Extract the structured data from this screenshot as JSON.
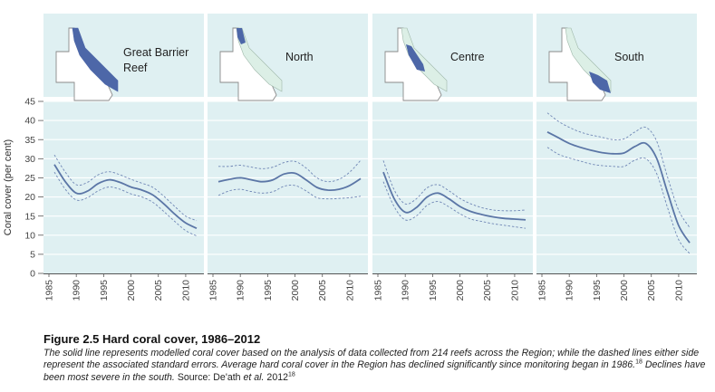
{
  "figure": {
    "title": "Figure 2.5 Hard coral cover, 1986–2012",
    "caption_part1": "The solid line represents modelled coral cover based on the analysis of data collected from 214 reefs across the Region; while the dashed lines either side represent the associated standard errors. Average hard coral cover in the Region has declined significantly since monitoring began in 1986.",
    "caption_ref1": "18",
    "caption_part2": " Declines have been most severe in the south.",
    "caption_source_label": " Source: De'ath ",
    "caption_source_etal": "et al.",
    "caption_source_year": " 2012",
    "caption_ref2": "18"
  },
  "chart_data": {
    "type": "line",
    "ylabel": "Coral cover (per cent)",
    "ylim": [
      0,
      45
    ],
    "yticks": [
      0,
      5,
      10,
      15,
      20,
      25,
      30,
      35,
      40,
      45
    ],
    "xlim": [
      1985,
      2012
    ],
    "xticks": [
      1985,
      1990,
      1995,
      2000,
      2005,
      2010
    ],
    "grid": true,
    "colors": {
      "mean": "#5b76a6",
      "bound": "#6f86b5",
      "panel_bg": "#dff0f2",
      "gridline": "#ffffff",
      "map_fill": "#ffffff",
      "map_stroke": "#8a8a8a",
      "reef_light": "#dcefe6",
      "reef_highlight": "#4d67a8"
    },
    "panels": [
      {
        "title_lines": [
          "Great Barrier",
          "Reef"
        ],
        "highlight": "all",
        "x": [
          1986,
          1988,
          1990,
          1992,
          1994,
          1996,
          1998,
          2000,
          2002,
          2004,
          2006,
          2008,
          2010,
          2012
        ],
        "mean": [
          28.5,
          24.0,
          21.0,
          21.5,
          23.5,
          24.5,
          23.8,
          22.6,
          21.8,
          20.5,
          18.2,
          15.5,
          13.2,
          11.8
        ],
        "upper": [
          31.0,
          26.5,
          23.2,
          23.8,
          25.8,
          26.6,
          25.8,
          24.6,
          23.6,
          22.5,
          20.2,
          17.5,
          15.0,
          13.8
        ],
        "lower": [
          26.5,
          22.0,
          19.2,
          19.8,
          21.6,
          22.6,
          22.0,
          20.8,
          20.0,
          18.6,
          16.2,
          13.6,
          11.2,
          9.8
        ]
      },
      {
        "title_lines": [
          "North"
        ],
        "highlight": "north",
        "x": [
          1986,
          1988,
          1990,
          1992,
          1994,
          1996,
          1998,
          2000,
          2002,
          2004,
          2006,
          2008,
          2010,
          2012
        ],
        "mean": [
          24.0,
          24.6,
          25.0,
          24.5,
          24.0,
          24.5,
          26.0,
          26.2,
          24.5,
          22.5,
          21.8,
          22.0,
          23.0,
          24.8
        ],
        "upper": [
          28.0,
          28.0,
          28.3,
          27.8,
          27.4,
          27.8,
          29.0,
          29.3,
          27.6,
          25.0,
          24.0,
          24.6,
          26.5,
          29.6
        ],
        "lower": [
          20.4,
          21.6,
          22.0,
          21.4,
          21.0,
          21.4,
          22.8,
          23.0,
          21.6,
          19.8,
          19.5,
          19.6,
          19.8,
          20.2
        ]
      },
      {
        "title_lines": [
          "Centre"
        ],
        "highlight": "centre",
        "x": [
          1986,
          1988,
          1990,
          1992,
          1994,
          1996,
          1998,
          2000,
          2002,
          2004,
          2006,
          2008,
          2010,
          2012
        ],
        "mean": [
          26.5,
          19.5,
          16.0,
          17.2,
          20.0,
          21.0,
          19.5,
          17.5,
          16.2,
          15.4,
          14.8,
          14.4,
          14.2,
          14.0
        ],
        "upper": [
          29.5,
          21.8,
          18.2,
          19.5,
          22.4,
          23.2,
          21.6,
          19.6,
          18.2,
          17.2,
          16.6,
          16.4,
          16.4,
          16.6
        ],
        "lower": [
          24.0,
          17.4,
          14.0,
          15.0,
          17.8,
          18.8,
          17.4,
          15.6,
          14.2,
          13.6,
          13.0,
          12.6,
          12.2,
          11.8
        ]
      },
      {
        "title_lines": [
          "South"
        ],
        "highlight": "south",
        "x": [
          1986,
          1988,
          1990,
          1992,
          1994,
          1996,
          1998,
          2000,
          2002,
          2004,
          2006,
          2008,
          2010,
          2012
        ],
        "mean": [
          37.0,
          35.5,
          34.0,
          33.0,
          32.2,
          31.6,
          31.3,
          31.5,
          33.2,
          34.0,
          30.0,
          21.0,
          12.5,
          8.0
        ],
        "upper": [
          42.0,
          39.8,
          38.2,
          37.0,
          36.2,
          35.6,
          35.0,
          35.2,
          37.0,
          38.2,
          34.5,
          25.0,
          16.5,
          12.0
        ],
        "lower": [
          33.0,
          31.2,
          30.2,
          29.4,
          28.6,
          28.2,
          28.0,
          28.0,
          29.6,
          30.0,
          26.0,
          17.0,
          8.8,
          5.2
        ]
      }
    ]
  }
}
